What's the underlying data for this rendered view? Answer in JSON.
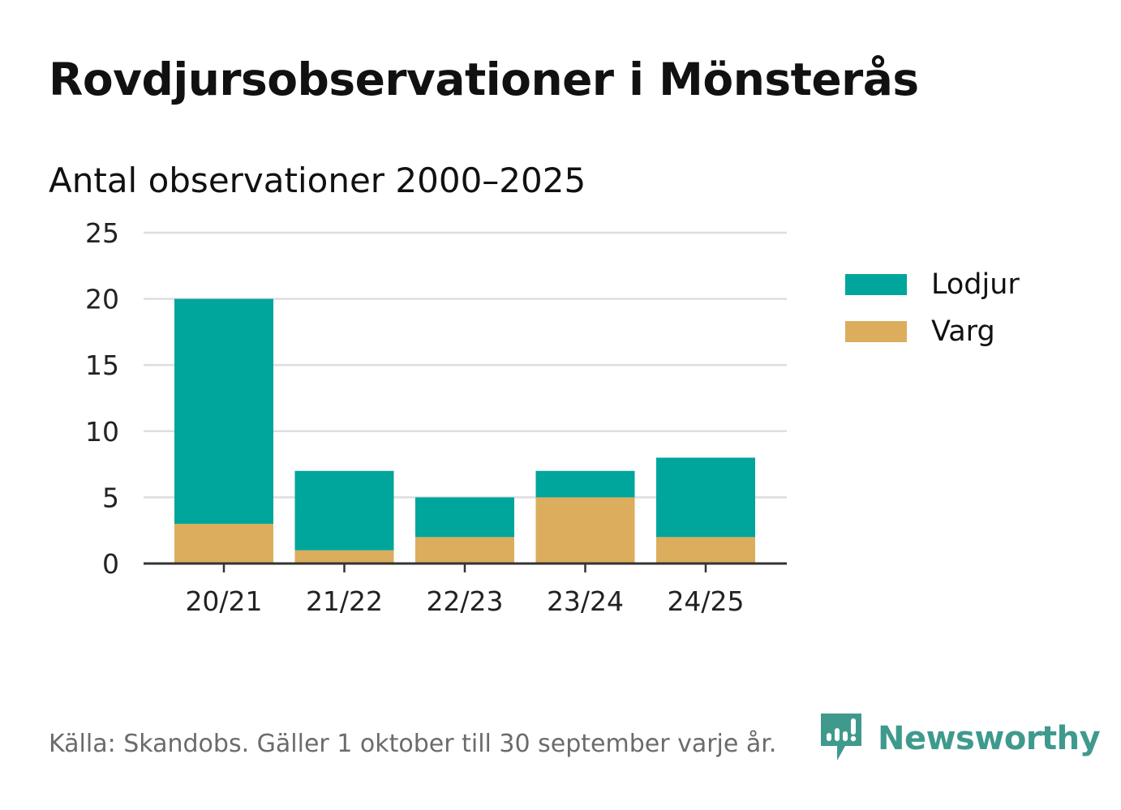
{
  "title": "Rovdjursobservationer i Mönsterås",
  "subtitle": "Antal observationer 2000–2025",
  "source": "Källa: Skandobs. Gäller 1 oktober till 30 september varje år.",
  "brand": {
    "name": "Newsworthy",
    "icon": "newsworthy-logo-icon",
    "color": "#3f9a8d"
  },
  "chart_data": {
    "type": "bar",
    "stacked": true,
    "categories": [
      "20/21",
      "21/22",
      "22/23",
      "23/24",
      "24/25"
    ],
    "series": [
      {
        "name": "Varg",
        "color": "#dbad5c",
        "values": [
          3,
          1,
          2,
          5,
          2
        ]
      },
      {
        "name": "Lodjur",
        "color": "#00a59b",
        "values": [
          17,
          6,
          3,
          2,
          6
        ]
      }
    ],
    "yticks": [
      0,
      5,
      10,
      15,
      20,
      25
    ],
    "ylim": [
      0,
      25
    ],
    "xlabel": "",
    "ylabel": "",
    "grid": true,
    "legend": [
      {
        "name": "Lodjur",
        "color": "#00a59b"
      },
      {
        "name": "Varg",
        "color": "#dbad5c"
      }
    ],
    "legend_position": "right"
  }
}
